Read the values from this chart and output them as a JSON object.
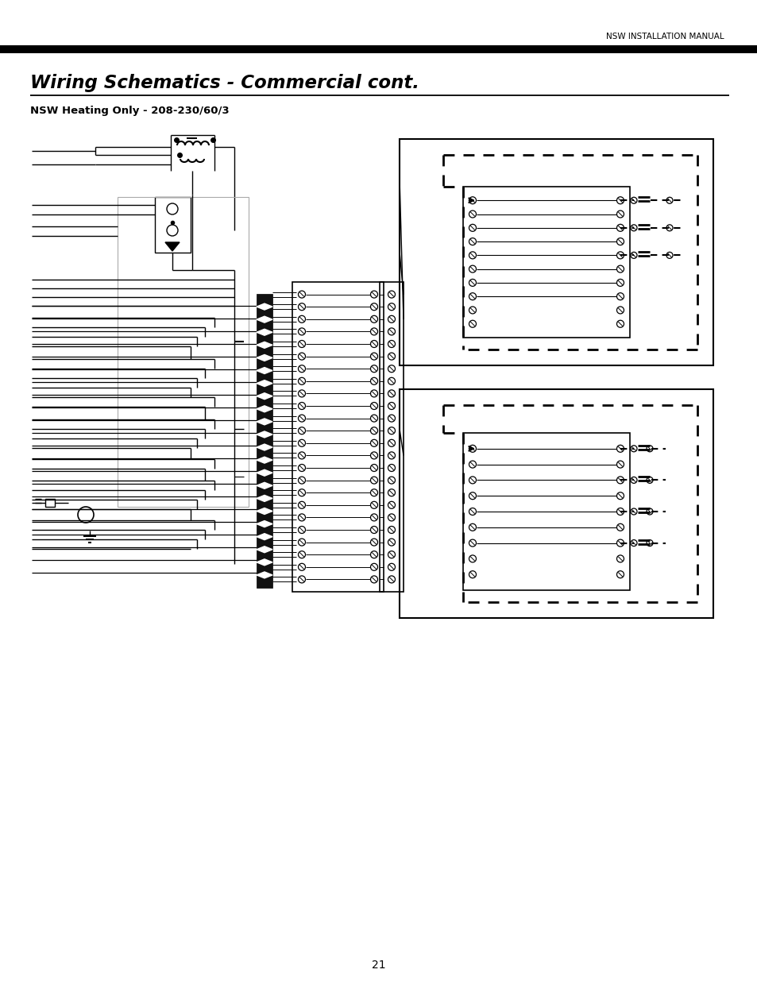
{
  "header_text": "NSW INSTALLATION MANUAL",
  "title": "Wiring Schematics - Commercial cont.",
  "subtitle": "NSW Heating Only - 208-230/60/3",
  "page_number": "21",
  "bg_color": "#ffffff",
  "line_color": "#000000"
}
